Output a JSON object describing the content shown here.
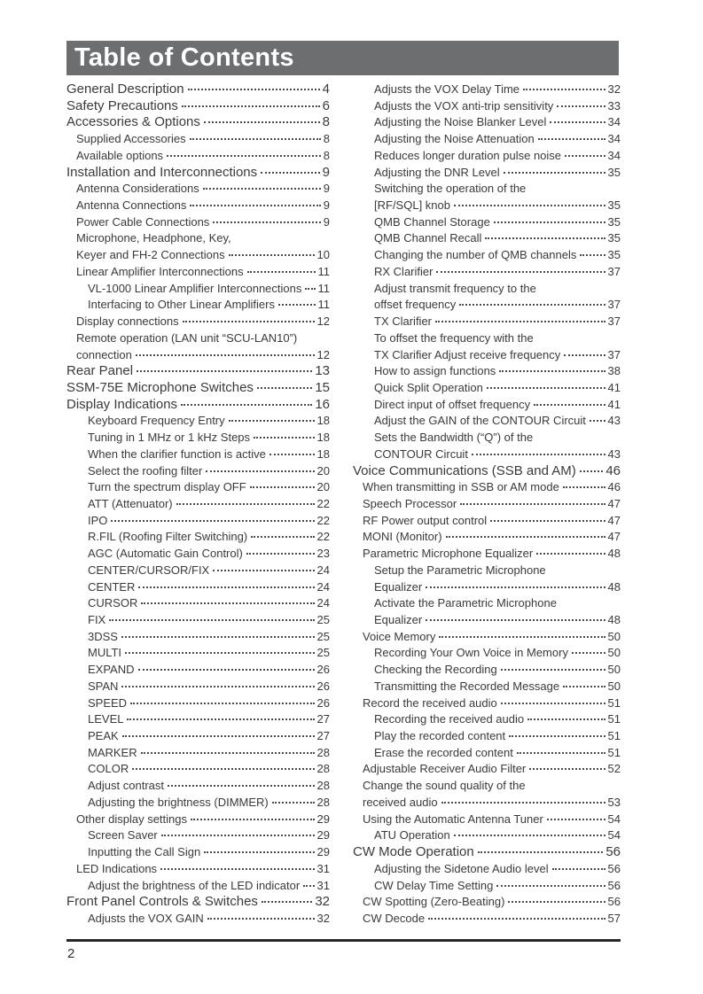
{
  "header": {
    "title": "Table of Contents"
  },
  "footer": {
    "page_number": "2"
  },
  "toc": {
    "left": [
      {
        "lines": [
          "General Description"
        ],
        "page": "4",
        "level": 0
      },
      {
        "lines": [
          "Safety Precautions"
        ],
        "page": "6",
        "level": 0
      },
      {
        "lines": [
          "Accessories & Options"
        ],
        "page": "8",
        "level": 0
      },
      {
        "lines": [
          "Supplied Accessories"
        ],
        "page": "8",
        "level": 1
      },
      {
        "lines": [
          "Available options"
        ],
        "page": "8",
        "level": 1
      },
      {
        "lines": [
          "Installation and Interconnections"
        ],
        "page": "9",
        "level": 0
      },
      {
        "lines": [
          "Antenna Considerations"
        ],
        "page": "9",
        "level": 1
      },
      {
        "lines": [
          "Antenna Connections"
        ],
        "page": "9",
        "level": 1
      },
      {
        "lines": [
          "Power Cable Connections"
        ],
        "page": "9",
        "level": 1
      },
      {
        "lines": [
          "Microphone, Headphone, Key,",
          "Keyer and FH-2 Connections"
        ],
        "page": "10",
        "level": 1
      },
      {
        "lines": [
          "Linear Amplifier Interconnections"
        ],
        "page": "11",
        "level": 1
      },
      {
        "lines": [
          "VL-1000 Linear Amplifier Interconnections"
        ],
        "page": "11",
        "level": 2
      },
      {
        "lines": [
          "Interfacing to Other Linear Amplifiers"
        ],
        "page": "11",
        "level": 2
      },
      {
        "lines": [
          "Display connections"
        ],
        "page": "12",
        "level": 1
      },
      {
        "lines": [
          "Remote operation (LAN unit “SCU-LAN10”)",
          "connection"
        ],
        "page": "12",
        "level": 1
      },
      {
        "lines": [
          "Rear Panel"
        ],
        "page": "13",
        "level": 0
      },
      {
        "lines": [
          "SSM-75E Microphone Switches"
        ],
        "page": "15",
        "level": 0
      },
      {
        "lines": [
          "Display Indications"
        ],
        "page": "16",
        "level": 0
      },
      {
        "lines": [
          "Keyboard Frequency Entry"
        ],
        "page": "18",
        "level": 2
      },
      {
        "lines": [
          "Tuning in 1 MHz or 1 kHz Steps"
        ],
        "page": "18",
        "level": 2
      },
      {
        "lines": [
          "When the clarifier function is active"
        ],
        "page": "18",
        "level": 2
      },
      {
        "lines": [
          "Select the roofing filter"
        ],
        "page": "20",
        "level": 2
      },
      {
        "lines": [
          "Turn the spectrum display OFF"
        ],
        "page": "20",
        "level": 2
      },
      {
        "lines": [
          "ATT (Attenuator)"
        ],
        "page": "22",
        "level": 2
      },
      {
        "lines": [
          "IPO"
        ],
        "page": "22",
        "level": 2
      },
      {
        "lines": [
          "R.FIL (Roofing Filter Switching)"
        ],
        "page": "22",
        "level": 2
      },
      {
        "lines": [
          "AGC (Automatic Gain Control)"
        ],
        "page": "23",
        "level": 2
      },
      {
        "lines": [
          "CENTER/CURSOR/FIX"
        ],
        "page": "24",
        "level": 2
      },
      {
        "lines": [
          "CENTER"
        ],
        "page": "24",
        "level": 2
      },
      {
        "lines": [
          "CURSOR"
        ],
        "page": "24",
        "level": 2
      },
      {
        "lines": [
          "FIX"
        ],
        "page": "25",
        "level": 2
      },
      {
        "lines": [
          "3DSS"
        ],
        "page": "25",
        "level": 2
      },
      {
        "lines": [
          "MULTI"
        ],
        "page": "25",
        "level": 2
      },
      {
        "lines": [
          "EXPAND"
        ],
        "page": "26",
        "level": 2
      },
      {
        "lines": [
          "SPAN"
        ],
        "page": "26",
        "level": 2
      },
      {
        "lines": [
          "SPEED"
        ],
        "page": "26",
        "level": 2
      },
      {
        "lines": [
          "LEVEL"
        ],
        "page": "27",
        "level": 2
      },
      {
        "lines": [
          "PEAK"
        ],
        "page": "27",
        "level": 2
      },
      {
        "lines": [
          "MARKER"
        ],
        "page": "28",
        "level": 2
      },
      {
        "lines": [
          "COLOR"
        ],
        "page": "28",
        "level": 2
      },
      {
        "lines": [
          "Adjust contrast"
        ],
        "page": "28",
        "level": 2
      },
      {
        "lines": [
          "Adjusting the brightness (DIMMER)"
        ],
        "page": "28",
        "level": 2
      },
      {
        "lines": [
          "Other display settings"
        ],
        "page": "29",
        "level": 1
      },
      {
        "lines": [
          "Screen Saver"
        ],
        "page": "29",
        "level": 2
      },
      {
        "lines": [
          "Inputting the Call Sign"
        ],
        "page": "29",
        "level": 2
      },
      {
        "lines": [
          "LED Indications"
        ],
        "page": "31",
        "level": 1
      },
      {
        "lines": [
          "Adjust the brightness of the LED indicator"
        ],
        "page": "31",
        "level": 2
      },
      {
        "lines": [
          "Front Panel Controls & Switches"
        ],
        "page": "32",
        "level": 0
      },
      {
        "lines": [
          "Adjusts the VOX GAIN"
        ],
        "page": "32",
        "level": 2
      }
    ],
    "right": [
      {
        "lines": [
          "Adjusts the VOX Delay Time"
        ],
        "page": "32",
        "level": 2
      },
      {
        "lines": [
          "Adjusts the VOX anti-trip sensitivity"
        ],
        "page": "33",
        "level": 2
      },
      {
        "lines": [
          "Adjusting the Noise Blanker Level"
        ],
        "page": "34",
        "level": 2
      },
      {
        "lines": [
          "Adjusting the Noise Attenuation"
        ],
        "page": "34",
        "level": 2
      },
      {
        "lines": [
          "Reduces longer duration pulse noise"
        ],
        "page": "34",
        "level": 2
      },
      {
        "lines": [
          "Adjusting the DNR Level"
        ],
        "page": "35",
        "level": 2
      },
      {
        "lines": [
          "Switching the operation of the",
          "[RF/SQL] knob"
        ],
        "page": "35",
        "level": 2
      },
      {
        "lines": [
          "QMB Channel Storage"
        ],
        "page": "35",
        "level": 2
      },
      {
        "lines": [
          "QMB Channel Recall"
        ],
        "page": "35",
        "level": 2
      },
      {
        "lines": [
          "Changing the number of QMB channels"
        ],
        "page": "35",
        "level": 2
      },
      {
        "lines": [
          "RX Clarifier"
        ],
        "page": "37",
        "level": 2
      },
      {
        "lines": [
          "Adjust transmit frequency to the",
          "offset frequency"
        ],
        "page": "37",
        "level": 2
      },
      {
        "lines": [
          "TX Clarifier"
        ],
        "page": "37",
        "level": 2
      },
      {
        "lines": [
          "To offset the frequency with the",
          "TX Clarifier Adjust receive frequency"
        ],
        "page": "37",
        "level": 2
      },
      {
        "lines": [
          "How to assign functions"
        ],
        "page": "38",
        "level": 2
      },
      {
        "lines": [
          "Quick Split Operation"
        ],
        "page": "41",
        "level": 2
      },
      {
        "lines": [
          "Direct input of offset frequency"
        ],
        "page": "41",
        "level": 2
      },
      {
        "lines": [
          "Adjust the GAIN of the CONTOUR Circuit"
        ],
        "page": "43",
        "level": 2
      },
      {
        "lines": [
          "Sets the Bandwidth (“Q”) of the",
          "CONTOUR Circuit"
        ],
        "page": "43",
        "level": 2
      },
      {
        "lines": [
          "Voice Communications (SSB and AM)"
        ],
        "page": "46",
        "level": 0
      },
      {
        "lines": [
          "When transmitting in SSB or AM mode"
        ],
        "page": "46",
        "level": 1
      },
      {
        "lines": [
          "Speech Processor"
        ],
        "page": "47",
        "level": 1
      },
      {
        "lines": [
          "RF Power output control"
        ],
        "page": "47",
        "level": 1
      },
      {
        "lines": [
          "MONI (Monitor)"
        ],
        "page": "47",
        "level": 1
      },
      {
        "lines": [
          "Parametric Microphone Equalizer"
        ],
        "page": "48",
        "level": 1
      },
      {
        "lines": [
          "Setup the Parametric Microphone",
          "Equalizer"
        ],
        "page": "48",
        "level": 2
      },
      {
        "lines": [
          "Activate the Parametric Microphone",
          "Equalizer"
        ],
        "page": "48",
        "level": 2
      },
      {
        "lines": [
          "Voice Memory"
        ],
        "page": "50",
        "level": 1
      },
      {
        "lines": [
          "Recording Your Own Voice in Memory"
        ],
        "page": "50",
        "level": 2
      },
      {
        "lines": [
          "Checking the Recording"
        ],
        "page": "50",
        "level": 2
      },
      {
        "lines": [
          "Transmitting the Recorded Message"
        ],
        "page": "50",
        "level": 2
      },
      {
        "lines": [
          "Record the received audio"
        ],
        "page": "51",
        "level": 1
      },
      {
        "lines": [
          "Recording the received audio"
        ],
        "page": "51",
        "level": 2
      },
      {
        "lines": [
          "Play the recorded content"
        ],
        "page": "51",
        "level": 2
      },
      {
        "lines": [
          "Erase the recorded content"
        ],
        "page": "51",
        "level": 2
      },
      {
        "lines": [
          "Adjustable Receiver Audio Filter"
        ],
        "page": "52",
        "level": 1
      },
      {
        "lines": [
          "Change the sound quality of the",
          "received audio"
        ],
        "page": "53",
        "level": 1
      },
      {
        "lines": [
          "Using the Automatic Antenna Tuner"
        ],
        "page": "54",
        "level": 1
      },
      {
        "lines": [
          "ATU Operation"
        ],
        "page": "54",
        "level": 2
      },
      {
        "lines": [
          "CW Mode Operation"
        ],
        "page": "56",
        "level": 0
      },
      {
        "lines": [
          "Adjusting the Sidetone Audio level"
        ],
        "page": "56",
        "level": 2
      },
      {
        "lines": [
          "CW Delay Time Setting"
        ],
        "page": "56",
        "level": 2
      },
      {
        "lines": [
          "CW Spotting (Zero-Beating)"
        ],
        "page": "56",
        "level": 1
      },
      {
        "lines": [
          "CW Decode"
        ],
        "page": "57",
        "level": 1
      }
    ]
  },
  "colors": {
    "header_bar": "#6d6e70",
    "body_text": "#3a3a3c",
    "footer_rule": "#262627"
  }
}
